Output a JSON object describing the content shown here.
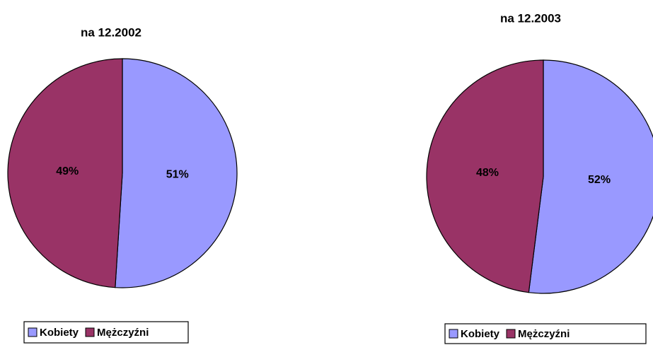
{
  "chart_data": [
    {
      "type": "pie",
      "title": "na 12.2002",
      "categories": [
        "Kobiety",
        "Mężczyźni"
      ],
      "values": [
        51,
        49
      ],
      "value_labels": [
        "51%",
        "49%"
      ],
      "colors": [
        "#9999ff",
        "#993366"
      ]
    },
    {
      "type": "pie",
      "title": "na 12.2003",
      "categories": [
        "Kobiety",
        "Mężczyźni"
      ],
      "values": [
        52,
        48
      ],
      "value_labels": [
        "52%",
        "48%"
      ],
      "colors": [
        "#9999ff",
        "#993366"
      ]
    }
  ]
}
